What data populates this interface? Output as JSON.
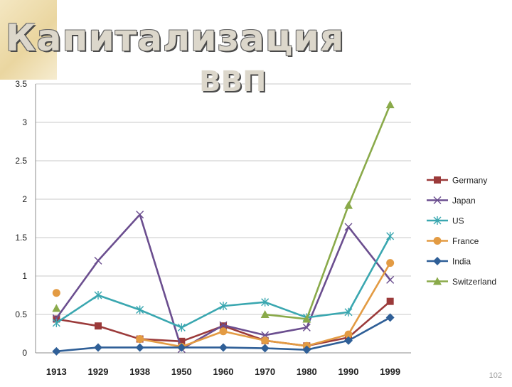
{
  "slide": {
    "title": "Капитализация",
    "title_cutoff": "ВВП",
    "page_number": "102"
  },
  "chart_data": {
    "type": "line",
    "categories": [
      "1913",
      "1929",
      "1938",
      "1950",
      "1960",
      "1970",
      "1980",
      "1990",
      "1999"
    ],
    "ylim": [
      0,
      3.5
    ],
    "yticks": [
      "0",
      "0.5",
      "1",
      "1.5",
      "2",
      "2.5",
      "3",
      "3.5"
    ],
    "grid": true,
    "legend_position": "right",
    "series": [
      {
        "name": "Germany",
        "color": "#9b3a3a",
        "marker": "square",
        "values": [
          0.44,
          0.35,
          0.18,
          0.15,
          0.35,
          0.16,
          0.09,
          0.2,
          0.67
        ]
      },
      {
        "name": "Japan",
        "color": "#6b4e8f",
        "marker": "x",
        "values": [
          0.45,
          1.2,
          1.8,
          0.05,
          0.36,
          0.23,
          0.33,
          1.64,
          0.95
        ]
      },
      {
        "name": "US",
        "color": "#3aa7b0",
        "marker": "star",
        "values": [
          0.39,
          0.75,
          0.56,
          0.33,
          0.61,
          0.66,
          0.46,
          0.53,
          1.52
        ]
      },
      {
        "name": "France",
        "color": "#e39b43",
        "marker": "circle",
        "values": [
          0.78,
          null,
          0.18,
          0.08,
          0.28,
          0.16,
          0.09,
          0.24,
          1.17
        ]
      },
      {
        "name": "India",
        "color": "#2f5f97",
        "marker": "diamond",
        "values": [
          0.02,
          0.07,
          0.07,
          0.07,
          0.07,
          0.06,
          0.04,
          0.16,
          0.46
        ]
      },
      {
        "name": "Switzerland",
        "color": "#8aaa4a",
        "marker": "triangle",
        "values": [
          0.58,
          null,
          null,
          null,
          null,
          0.5,
          0.44,
          1.92,
          3.23
        ]
      }
    ]
  }
}
